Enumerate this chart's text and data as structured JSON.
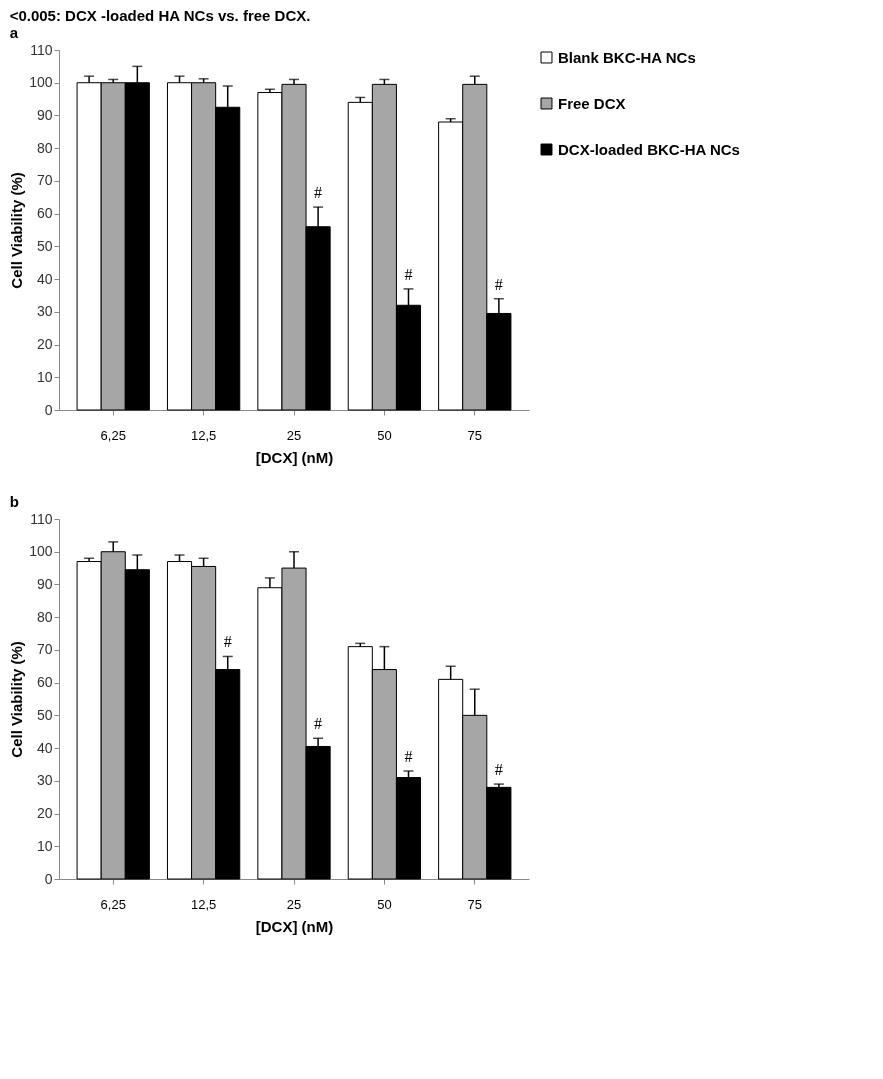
{
  "chart_data": [
    {
      "type": "bar",
      "annotations": [
        "<0.005: DCX -loaded HA NCs vs. free DCX.",
        "a"
      ],
      "xlabel": "[DCX] (nM)",
      "ylabel": "Cell Viability (%)",
      "categories": [
        "6,25",
        "12,5",
        "25",
        "50",
        "75"
      ],
      "series": [
        {
          "name": "Blank BKC-HA NCs",
          "color": "#ffffff",
          "values": [
            100,
            100,
            97,
            94,
            88
          ],
          "errors": [
            [
              100,
              102
            ],
            [
              100,
              102
            ],
            [
              97,
              98
            ],
            [
              94,
              95.5
            ],
            [
              88,
              89
            ]
          ]
        },
        {
          "name": "Free DCX",
          "color": "#a6a6a6",
          "values": [
            100,
            100,
            99.5,
            99.5,
            99.5
          ],
          "errors": [
            [
              100,
              101
            ],
            [
              100,
              101.2
            ],
            [
              99.5,
              101
            ],
            [
              99.5,
              101
            ],
            [
              99.5,
              102
            ]
          ]
        },
        {
          "name": "DCX-loaded BKC-HA NCs",
          "color": "#000000",
          "values": [
            100,
            92.5,
            56,
            32,
            29.5
          ],
          "errors": [
            [
              100,
              105
            ],
            [
              92.5,
              99
            ],
            [
              56,
              62
            ],
            [
              32,
              37
            ],
            [
              29.5,
              34
            ]
          ],
          "value_labels": [
            null,
            null,
            "#",
            "#",
            "#"
          ]
        }
      ],
      "ylim": [
        0,
        110
      ],
      "yticks": [
        0,
        10,
        20,
        30,
        40,
        50,
        60,
        70,
        80,
        90,
        100,
        110
      ],
      "grid": false,
      "legend": "right"
    },
    {
      "type": "bar",
      "annotations": [
        "b"
      ],
      "xlabel": "[DCX] (nM)",
      "ylabel": "Cell Viability (%)",
      "categories": [
        "6,25",
        "12,5",
        "25",
        "50",
        "75"
      ],
      "series": [
        {
          "name": "Blank BKC-HA NCs",
          "color": "#ffffff",
          "values": [
            97,
            97,
            89,
            71,
            61
          ],
          "errors": [
            [
              97,
              98
            ],
            [
              97,
              99
            ],
            [
              89,
              92
            ],
            [
              71,
              72
            ],
            [
              61,
              65
            ]
          ]
        },
        {
          "name": "Free DCX",
          "color": "#a6a6a6",
          "values": [
            100,
            95.5,
            95,
            64,
            50
          ],
          "errors": [
            [
              100,
              103
            ],
            [
              95.5,
              98
            ],
            [
              95,
              100
            ],
            [
              64,
              71
            ],
            [
              50,
              58
            ]
          ]
        },
        {
          "name": "DCX-loaded BKC-HA NCs",
          "color": "#000000",
          "values": [
            94.5,
            64,
            40.5,
            31,
            28
          ],
          "errors": [
            [
              94.5,
              99
            ],
            [
              64,
              68
            ],
            [
              40.5,
              43
            ],
            [
              31,
              33
            ],
            [
              28,
              29
            ]
          ],
          "value_labels": [
            null,
            "#",
            "#",
            "#",
            "#"
          ]
        }
      ],
      "ylim": [
        0,
        110
      ],
      "yticks": [
        0,
        10,
        20,
        30,
        40,
        50,
        60,
        70,
        80,
        90,
        100,
        110
      ],
      "grid": false,
      "legend": "right"
    }
  ]
}
